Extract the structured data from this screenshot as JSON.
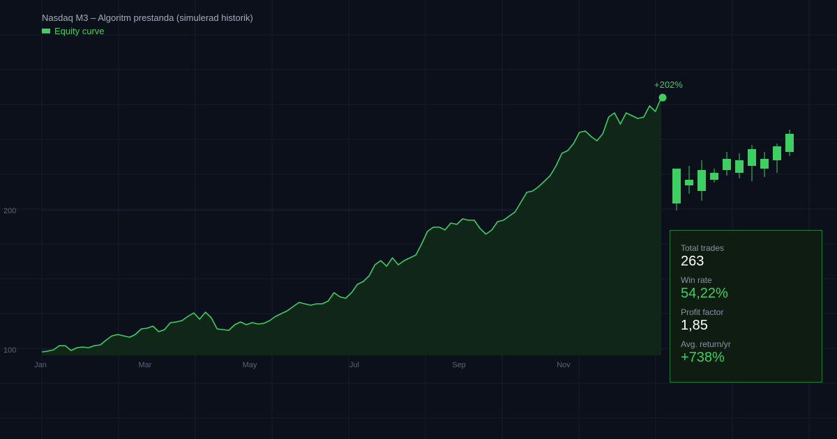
{
  "colors": {
    "background": "#0b101b",
    "grid": "#161d2b",
    "accent": "#3ccf62",
    "area": "#0f2618",
    "axis_text": "#5b6576",
    "title_text": "#a3adbd",
    "value_white": "#ffffff"
  },
  "chart_data": [
    {
      "type": "area",
      "title": "Nasdaq M3 – Algoritm prestanda (simulerad historik)",
      "legend": {
        "label": "Equity curve",
        "position": "top-left"
      },
      "xlabel": "",
      "ylabel": "",
      "x_ticks": [
        "Jan",
        "Mar",
        "May",
        "Jul",
        "Sep",
        "Nov"
      ],
      "y_ticks": [
        100,
        200
      ],
      "ylim": [
        96,
        302
      ],
      "grid": true,
      "series": [
        {
          "values": [
            98.5,
            99,
            100,
            103,
            103,
            99.5,
            101.5,
            102,
            101.5,
            103,
            103.5,
            107,
            110,
            111,
            110,
            109,
            111,
            115,
            115.5,
            117,
            113,
            114.5,
            119.5,
            120,
            121,
            124,
            126.5,
            122,
            127,
            123,
            115,
            114.5,
            114,
            118,
            120,
            118,
            119.5,
            118.5,
            119,
            121,
            124,
            126,
            128,
            131,
            134,
            133,
            132,
            133,
            133,
            135,
            141,
            138,
            137,
            141,
            147,
            149,
            153,
            161,
            164,
            160,
            166,
            161,
            164,
            166,
            168,
            176,
            185,
            188,
            188,
            186,
            191,
            190,
            194,
            193,
            193,
            187,
            183,
            186,
            192,
            193,
            196,
            199,
            206,
            213,
            214,
            217,
            221,
            225,
            232,
            241,
            243,
            248,
            256,
            257,
            253,
            250,
            255,
            267,
            270,
            262,
            270,
            268,
            266,
            267,
            275,
            271,
            281
          ]
        }
      ],
      "end_label": "+202%"
    },
    {
      "type": "candlestick",
      "candles": [
        {
          "open": 205,
          "close": 230,
          "high": 230,
          "low": 200
        },
        {
          "open": 222,
          "close": 218,
          "high": 232,
          "low": 212
        },
        {
          "open": 229,
          "close": 214,
          "high": 236,
          "low": 207
        },
        {
          "open": 227,
          "close": 222,
          "high": 230,
          "low": 220
        },
        {
          "open": 237,
          "close": 229,
          "high": 242,
          "low": 225
        },
        {
          "open": 236,
          "close": 227,
          "high": 241,
          "low": 223
        },
        {
          "open": 244,
          "close": 232,
          "high": 247,
          "low": 221
        },
        {
          "open": 237,
          "close": 230,
          "high": 242,
          "low": 224
        },
        {
          "open": 246,
          "close": 236,
          "high": 248,
          "low": 227
        },
        {
          "open": 255,
          "close": 242,
          "high": 258,
          "low": 239
        }
      ]
    }
  ],
  "stats": [
    {
      "label": "Total trades",
      "value": "263",
      "highlight": false
    },
    {
      "label": "Win rate",
      "value": "54,22%",
      "highlight": true
    },
    {
      "label": "Profit factor",
      "value": "1,85",
      "highlight": false
    },
    {
      "label": "Avg. return/yr",
      "value": "+738%",
      "highlight": true
    }
  ]
}
